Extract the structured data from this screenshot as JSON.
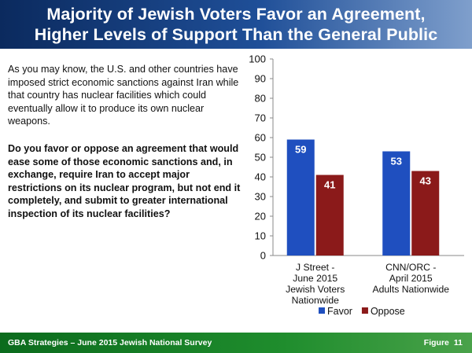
{
  "header": {
    "title_line1": "Majority of Jewish Voters Favor an Agreement,",
    "title_line2": "Higher Levels of Support Than the General Public"
  },
  "intro_text": "As you may know, the U.S. and other countries have imposed strict economic sanctions against Iran while that country has nuclear facilities which could eventually allow it to produce its own nuclear weapons.",
  "question_text": "Do you favor or oppose an agreement that would ease some of those economic sanctions and, in exchange, require Iran to accept major restrictions on its nuclear program, but not end it completely, and submit to greater international inspection of its nuclear facilities?",
  "chart_data": {
    "type": "bar",
    "categories": [
      [
        "J Street -",
        "June 2015",
        "Jewish Voters",
        "Nationwide"
      ],
      [
        "CNN/ORC -",
        "April 2015",
        "Adults Nationwide"
      ]
    ],
    "series": [
      {
        "name": "Favor",
        "values": [
          59,
          53
        ],
        "color": "#1f4fbf"
      },
      {
        "name": "Oppose",
        "values": [
          41,
          43
        ],
        "color": "#8b1a1a"
      }
    ],
    "ylim": [
      0,
      100
    ],
    "yticks": [
      0,
      10,
      20,
      30,
      40,
      50,
      60,
      70,
      80,
      90,
      100
    ],
    "grid": false,
    "legend": "bottom"
  },
  "footer": {
    "left": "GBA Strategies – June 2015 Jewish National Survey",
    "figure_label": "Figure",
    "figure_number": "11"
  }
}
